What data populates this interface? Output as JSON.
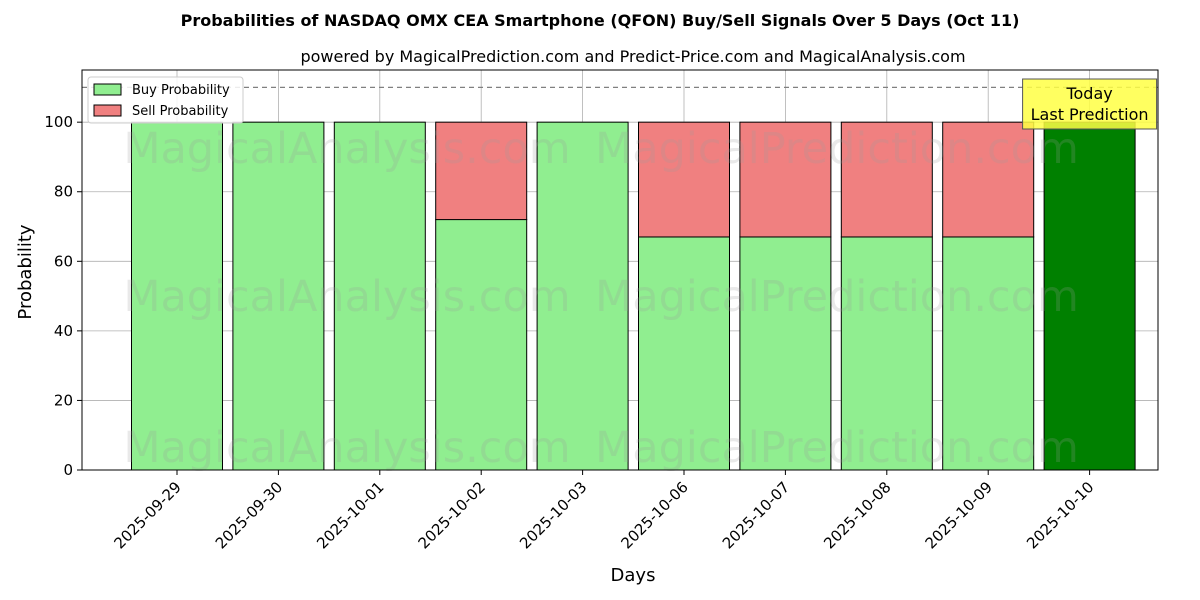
{
  "chart_data": {
    "type": "bar",
    "stacked": true,
    "title": "Probabilities of NASDAQ OMX CEA Smartphone (QFON) Buy/Sell Signals Over 5 Days (Oct 11)",
    "subtitle": "powered by MagicalPrediction.com and Predict-Price.com and MagicalAnalysis.com",
    "xlabel": "Days",
    "ylabel": "Probability",
    "ylim": [
      0,
      115
    ],
    "yticks": [
      0,
      20,
      40,
      60,
      80,
      100
    ],
    "reference_line": 110,
    "grid": true,
    "legend_position": "top-left",
    "categories": [
      "2025-09-29",
      "2025-09-30",
      "2025-10-01",
      "2025-10-02",
      "2025-10-03",
      "2025-10-06",
      "2025-10-07",
      "2025-10-08",
      "2025-10-09",
      "2025-10-10"
    ],
    "series": [
      {
        "name": "Buy Probability",
        "color": "#90ee90",
        "values": [
          100,
          100,
          100,
          72,
          100,
          67,
          67,
          67,
          67,
          100
        ]
      },
      {
        "name": "Sell Probability",
        "color": "#f08080",
        "values": [
          0,
          0,
          0,
          28,
          0,
          33,
          33,
          33,
          33,
          0
        ]
      }
    ],
    "highlight": {
      "index": 9,
      "color": "#008000"
    },
    "annotation": {
      "lines": [
        "Today",
        "Last Prediction"
      ],
      "bg_color": "#ffff44"
    },
    "watermarks": [
      "MagicalAnalysis.com",
      "MagicalPrediction.com"
    ]
  }
}
